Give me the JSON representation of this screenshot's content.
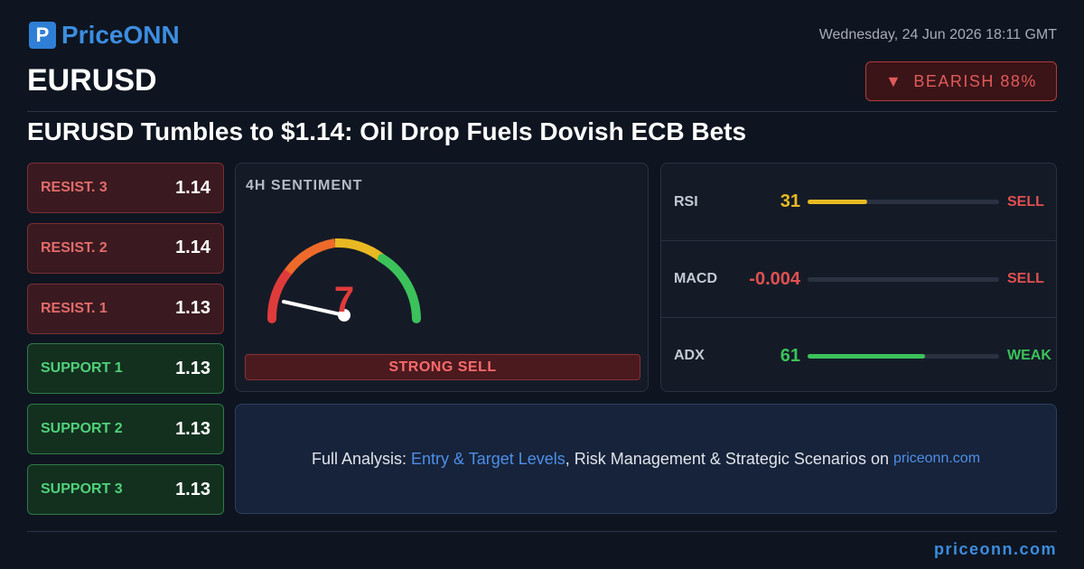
{
  "header": {
    "logo": "PriceONN",
    "symbol": "EURUSD",
    "datetime": "Wednesday, 24 Jun 2026 18:11 GMT",
    "badge": "BEARISH 88%"
  },
  "headline": "EURUSD Tumbles to $1.14: Oil Drop Fuels Dovish ECB Bets",
  "levels": [
    {
      "label": "RESIST. 3",
      "value": "1.14"
    },
    {
      "label": "RESIST. 2",
      "value": "1.14"
    },
    {
      "label": "RESIST. 1",
      "value": "1.13"
    },
    {
      "label": "SUPPORT 1",
      "value": "1.13"
    },
    {
      "label": "SUPPORT 2",
      "value": "1.13"
    },
    {
      "label": "SUPPORT 3",
      "value": "1.13"
    }
  ],
  "sentiment": {
    "title": "4H SENTIMENT",
    "score": 7,
    "signal": "STRONG SELL"
  },
  "indicators": [
    {
      "name": "RSI",
      "value": 31,
      "signal": "SELL"
    },
    {
      "name": "MACD",
      "value": -0.004,
      "signal": "SELL"
    },
    {
      "name": "ADX",
      "value": 61,
      "signal": "WEAK"
    }
  ],
  "cta": {
    "parts": [
      "Full Analysis:",
      "Entry & Target Levels",
      ", Risk Management & Strategic Scenarios on",
      "priceonn.com"
    ]
  },
  "footer": "priceonn.com"
}
